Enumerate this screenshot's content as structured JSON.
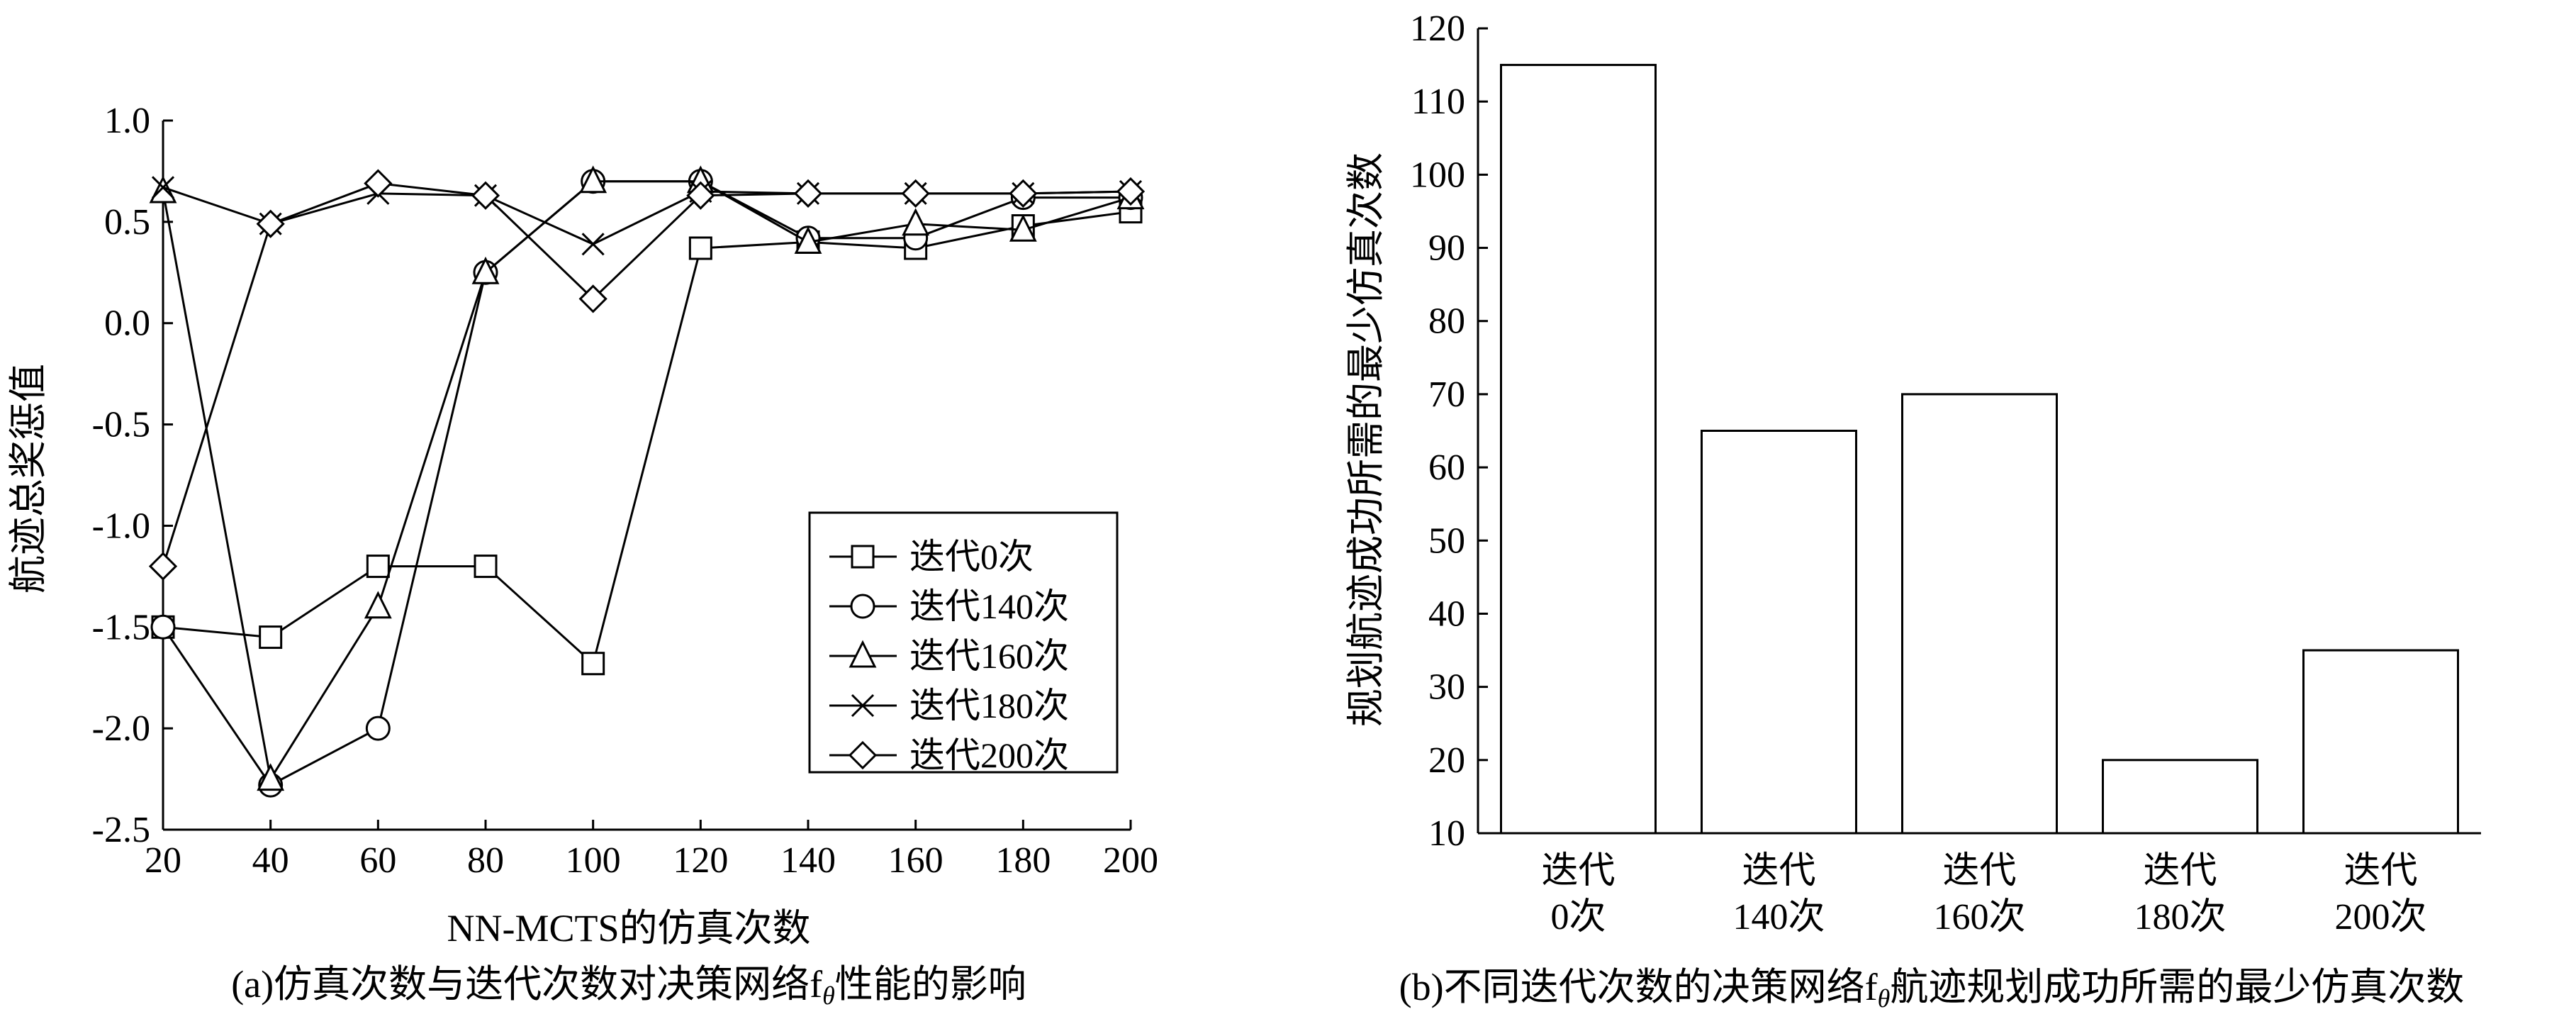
{
  "chart_data": [
    {
      "type": "line",
      "title": "",
      "caption": "(a)仿真次数与迭代次数对决策网络f",
      "caption_sub": "θ",
      "caption_tail": "性能的影响",
      "xlabel": "NN-MCTS的仿真次数",
      "ylabel": "航迹总奖惩值",
      "x": [
        20,
        40,
        60,
        80,
        100,
        120,
        140,
        160,
        180,
        200
      ],
      "x_ticks": [
        "20",
        "40",
        "60",
        "80",
        "100",
        "120",
        "140",
        "160",
        "180",
        "200"
      ],
      "xlim": [
        20,
        200
      ],
      "y_ticks": [
        "1.0",
        "0.5",
        "0.0",
        "-0.5",
        "-1.0",
        "-1.5",
        "-2.0",
        "-2.5"
      ],
      "ylim": [
        -2.5,
        1.0
      ],
      "legend_position": "center-right",
      "series": [
        {
          "name": "迭代0次",
          "marker": "square",
          "values": [
            -1.5,
            -1.55,
            -1.2,
            -1.2,
            -1.68,
            0.37,
            0.4,
            0.37,
            0.48,
            0.55
          ]
        },
        {
          "name": "迭代140次",
          "marker": "circle",
          "values": [
            -1.5,
            -2.28,
            -2.0,
            0.25,
            0.7,
            0.7,
            0.42,
            0.42,
            0.62,
            0.62
          ]
        },
        {
          "name": "迭代160次",
          "marker": "triangle",
          "values": [
            0.65,
            -2.25,
            -1.4,
            0.25,
            0.7,
            0.7,
            0.4,
            0.49,
            0.46,
            0.62
          ]
        },
        {
          "name": "迭代180次",
          "marker": "x",
          "values": [
            0.67,
            0.49,
            0.64,
            0.63,
            0.39,
            0.65,
            0.64,
            0.64,
            0.64,
            0.65
          ]
        },
        {
          "name": "迭代200次",
          "marker": "diamond",
          "values": [
            -1.2,
            0.49,
            0.69,
            0.63,
            0.12,
            0.63,
            0.64,
            0.64,
            0.64,
            0.65
          ]
        }
      ]
    },
    {
      "type": "bar",
      "title": "",
      "caption": "(b)不同迭代次数的决策网络f",
      "caption_sub": "θ",
      "caption_tail": "航迹规划成功所需的最少仿真次数",
      "ylabel": "规划航迹成功所需的最少仿真次数",
      "categories": [
        [
          "迭代",
          "0次"
        ],
        [
          "迭代",
          "140次"
        ],
        [
          "迭代",
          "160次"
        ],
        [
          "迭代",
          "180次"
        ],
        [
          "迭代",
          "200次"
        ]
      ],
      "values": [
        115,
        65,
        70,
        20,
        35
      ],
      "y_ticks": [
        "120",
        "110",
        "100",
        "90",
        "80",
        "70",
        "60",
        "50",
        "40",
        "30",
        "20",
        "10"
      ],
      "ylim": [
        10,
        120
      ]
    }
  ]
}
